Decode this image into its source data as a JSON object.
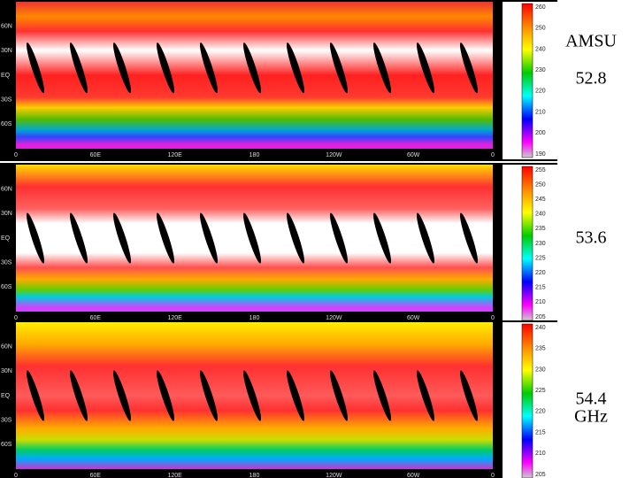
{
  "title": "AMSU",
  "unit": "GHz",
  "lon_labels": [
    "0",
    "60E",
    "120E",
    "180",
    "120W",
    "60W",
    "0"
  ],
  "lat_labels": [
    "60N",
    "30N",
    "EQ",
    "30S",
    "60S"
  ],
  "panels": [
    {
      "channel": "52.8",
      "colorbar_ticks": [
        "260",
        "250",
        "240",
        "230",
        "220",
        "210",
        "200",
        "190"
      ]
    },
    {
      "channel": "53.6",
      "colorbar_ticks": [
        "255",
        "250",
        "245",
        "240",
        "235",
        "230",
        "225",
        "220",
        "215",
        "210",
        "205"
      ]
    },
    {
      "channel": "54.4",
      "colorbar_ticks": [
        "240",
        "235",
        "230",
        "225",
        "220",
        "215",
        "210",
        "205"
      ]
    }
  ]
}
